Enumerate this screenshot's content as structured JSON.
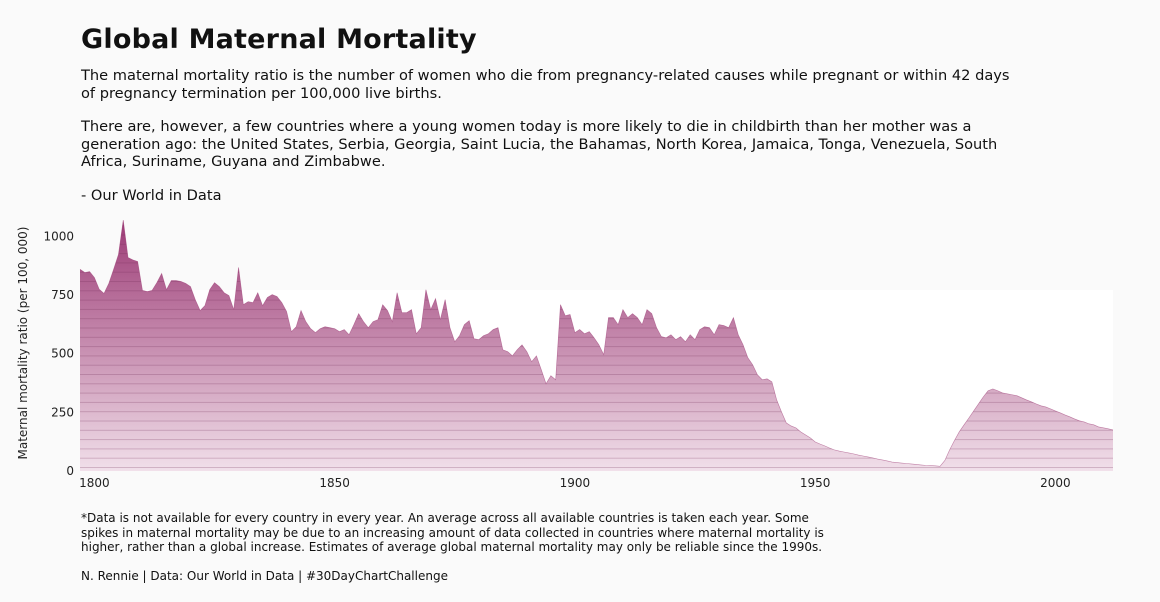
{
  "chart_data": {
    "type": "area",
    "title": "Global Maternal Mortality",
    "subtitle": [
      "The maternal mortality ratio is the number of women who die from pregnancy-related causes while pregnant or within 42 days of pregnancy termination per 100,000 live births.",
      "There are, however, a few countries where a young women today is more likely to die in childbirth than her mother was a generation ago: the United States, Serbia, Georgia, Saint Lucia, the Bahamas, North Korea, Jamaica, Tonga, Venezuela, South Africa, Suriname, Guyana and Zimbabwe.",
      "- Our World in Data"
    ],
    "y_label": "Maternal mortality ratio (per 100, 000)",
    "caption": "*Data is not available for every country in every year. An average across all available countries is taken each year. Some spikes in maternal mortality may be due to an increasing amount of data collected in countries where maternal mortality is higher, rather than a global increase. Estimates of average global maternal mortality may only be reliable since the 1990s.",
    "credit": "N. Rennie | Data: Our World in Data | #30DayChartChallenge",
    "color_top": "#9c3a75",
    "color_bottom": "#f1e0ea",
    "xlim": [
      1797,
      2012
    ],
    "xticks": [
      1800,
      1850,
      1900,
      1950,
      2000
    ],
    "ylim": [
      0,
      1070
    ],
    "yticks": [
      0,
      250,
      500,
      750,
      1000
    ],
    "x": [
      1797,
      1798,
      1799,
      1800,
      1801,
      1802,
      1803,
      1804,
      1805,
      1806,
      1807,
      1808,
      1809,
      1810,
      1811,
      1812,
      1813,
      1814,
      1815,
      1816,
      1817,
      1818,
      1819,
      1820,
      1821,
      1822,
      1823,
      1824,
      1825,
      1826,
      1827,
      1828,
      1829,
      1830,
      1831,
      1832,
      1833,
      1834,
      1835,
      1836,
      1837,
      1838,
      1839,
      1840,
      1841,
      1842,
      1843,
      1844,
      1845,
      1846,
      1847,
      1848,
      1849,
      1850,
      1851,
      1852,
      1853,
      1854,
      1855,
      1856,
      1857,
      1858,
      1859,
      1860,
      1861,
      1862,
      1863,
      1864,
      1865,
      1866,
      1867,
      1868,
      1869,
      1870,
      1871,
      1872,
      1873,
      1874,
      1875,
      1876,
      1877,
      1878,
      1879,
      1880,
      1881,
      1882,
      1883,
      1884,
      1885,
      1886,
      1887,
      1888,
      1889,
      1890,
      1891,
      1892,
      1893,
      1894,
      1895,
      1896,
      1897,
      1898,
      1899,
      1900,
      1901,
      1902,
      1903,
      1904,
      1905,
      1906,
      1907,
      1908,
      1909,
      1910,
      1911,
      1912,
      1913,
      1914,
      1915,
      1916,
      1917,
      1918,
      1919,
      1920,
      1921,
      1922,
      1923,
      1924,
      1925,
      1926,
      1927,
      1928,
      1929,
      1930,
      1931,
      1932,
      1933,
      1934,
      1935,
      1936,
      1937,
      1938,
      1939,
      1940,
      1941,
      1942,
      1943,
      1944,
      1945,
      1946,
      1947,
      1948,
      1949,
      1950,
      1951,
      1952,
      1953,
      1954,
      1955,
      1956,
      1957,
      1958,
      1959,
      1960,
      1961,
      1962,
      1963,
      1964,
      1965,
      1966,
      1967,
      1968,
      1969,
      1970,
      1971,
      1972,
      1973,
      1974,
      1975,
      1976,
      1977,
      1978,
      1979,
      1980,
      1981,
      1982,
      1983,
      1984,
      1985,
      1986,
      1987,
      1988,
      1989,
      1990,
      1991,
      1992,
      1993,
      1994,
      1995,
      1996,
      1997,
      1998,
      1999,
      2000,
      2001,
      2002,
      2003,
      2004,
      2005,
      2006,
      2007,
      2008,
      2009,
      2010,
      2011,
      2012
    ],
    "values": [
      860,
      846,
      850,
      825,
      775,
      757,
      800,
      860,
      923,
      1070,
      910,
      900,
      893,
      770,
      765,
      770,
      803,
      842,
      773,
      812,
      812,
      808,
      800,
      786,
      730,
      684,
      705,
      773,
      803,
      786,
      760,
      748,
      688,
      868,
      709,
      722,
      718,
      760,
      705,
      740,
      752,
      744,
      718,
      680,
      594,
      615,
      684,
      637,
      607,
      590,
      607,
      615,
      611,
      607,
      594,
      603,
      581,
      624,
      671,
      637,
      611,
      637,
      645,
      709,
      684,
      637,
      760,
      675,
      675,
      688,
      585,
      611,
      773,
      688,
      735,
      645,
      731,
      611,
      551,
      577,
      624,
      641,
      564,
      560,
      577,
      585,
      603,
      611,
      517,
      509,
      491,
      517,
      538,
      509,
      466,
      491,
      432,
      372,
      406,
      389,
      709,
      662,
      667,
      590,
      603,
      585,
      594,
      568,
      538,
      496,
      654,
      654,
      624,
      688,
      654,
      671,
      654,
      624,
      688,
      671,
      611,
      573,
      568,
      581,
      560,
      573,
      551,
      581,
      560,
      603,
      615,
      611,
      581,
      624,
      620,
      611,
      654,
      581,
      538,
      483,
      453,
      410,
      389,
      393,
      380,
      303,
      252,
      205,
      192,
      184,
      167,
      154,
      141,
      124,
      115,
      107,
      98,
      90,
      85,
      81,
      77,
      73,
      68,
      64,
      60,
      56,
      51,
      47,
      43,
      38,
      36,
      34,
      32,
      30,
      28,
      26,
      24,
      23,
      22,
      20,
      45,
      90,
      130,
      167,
      197,
      226,
      256,
      286,
      316,
      342,
      350,
      342,
      333,
      329,
      325,
      321,
      312,
      303,
      295,
      286,
      278,
      273,
      265,
      256,
      248,
      239,
      231,
      222,
      214,
      209,
      201,
      197,
      188,
      184,
      180,
      175
    ]
  }
}
